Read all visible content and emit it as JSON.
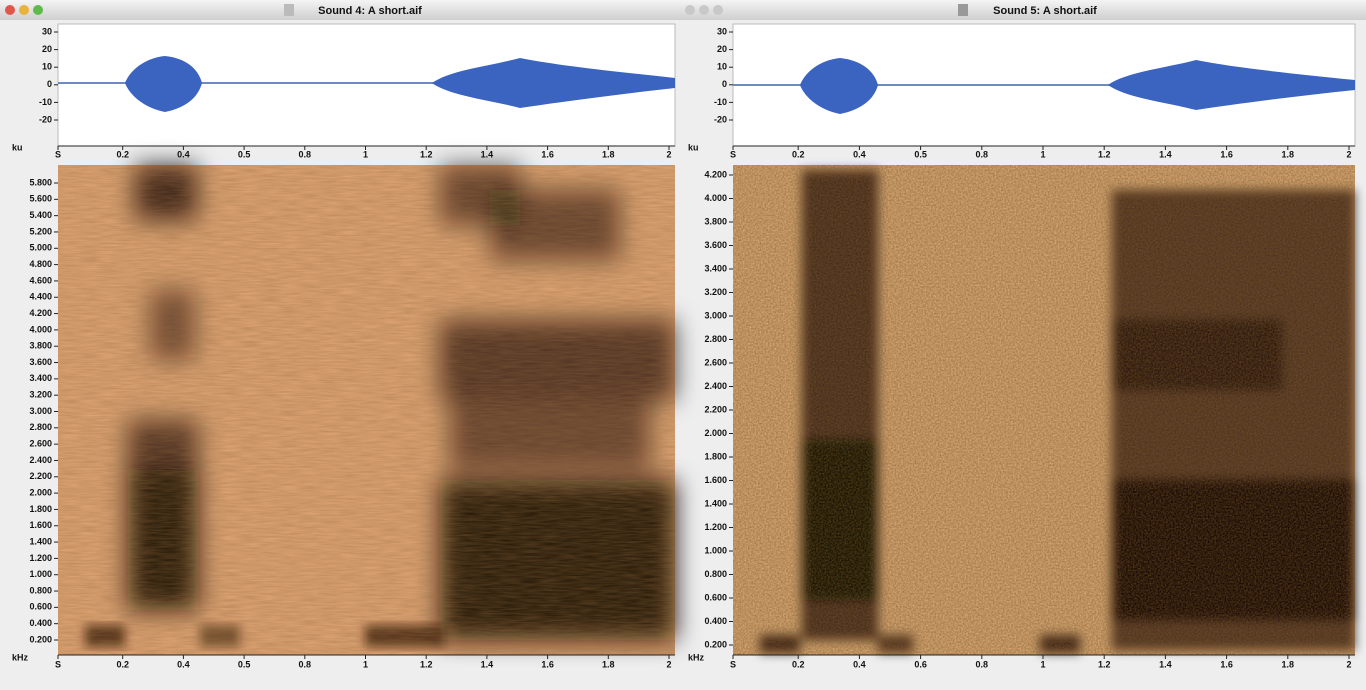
{
  "windows": [
    {
      "title": "Sound 4: A short.aif",
      "waveform": {
        "unit": "ku",
        "ticks": [
          "30",
          "20",
          "10",
          "0",
          "-10",
          "-20"
        ],
        "x_ticks": [
          "S",
          "0.2",
          "0.4",
          "0.5",
          "0.8",
          "1",
          "1.2",
          "1.4",
          "1.6",
          "1.8",
          "2"
        ]
      },
      "spectrogram": {
        "unit": "kHz",
        "ticks": [
          "5.800",
          "5.600",
          "5.400",
          "5.200",
          "5.000",
          "4.800",
          "4.600",
          "4.400",
          "4.200",
          "4.000",
          "3.800",
          "3.600",
          "3.400",
          "3.200",
          "3.000",
          "2.800",
          "2.600",
          "2.400",
          "2.200",
          "2.000",
          "1.800",
          "1.600",
          "1.400",
          "1.200",
          "1.000",
          "0.800",
          "0.600",
          "0.400",
          "0.200"
        ],
        "x_ticks": [
          "S",
          "0.2",
          "0.4",
          "0.5",
          "0.8",
          "1",
          "1.2",
          "1.4",
          "1.6",
          "1.8",
          "2"
        ]
      }
    },
    {
      "title": "Sound 5: A short.aif",
      "waveform": {
        "unit": "ku",
        "ticks": [
          "30",
          "20",
          "10",
          "0",
          "-10",
          "-20"
        ],
        "x_ticks": [
          "S",
          "0.2",
          "0.4",
          "0.5",
          "0.8",
          "1",
          "1.2",
          "1.4",
          "1.6",
          "1.8",
          "2"
        ]
      },
      "spectrogram": {
        "unit": "kHz",
        "ticks": [
          "4.200",
          "4.000",
          "3.800",
          "3.600",
          "3.400",
          "3.200",
          "3.000",
          "2.800",
          "2.600",
          "2.400",
          "2.200",
          "2.000",
          "1.800",
          "1.600",
          "1.400",
          "1.200",
          "1.000",
          "0.800",
          "0.600",
          "0.400",
          "0.200"
        ],
        "x_ticks": [
          "S",
          "0.2",
          "0.4",
          "0.6",
          "0.8",
          "1",
          "1.2",
          "1.4",
          "1.6",
          "1.8",
          "2"
        ]
      }
    }
  ]
}
